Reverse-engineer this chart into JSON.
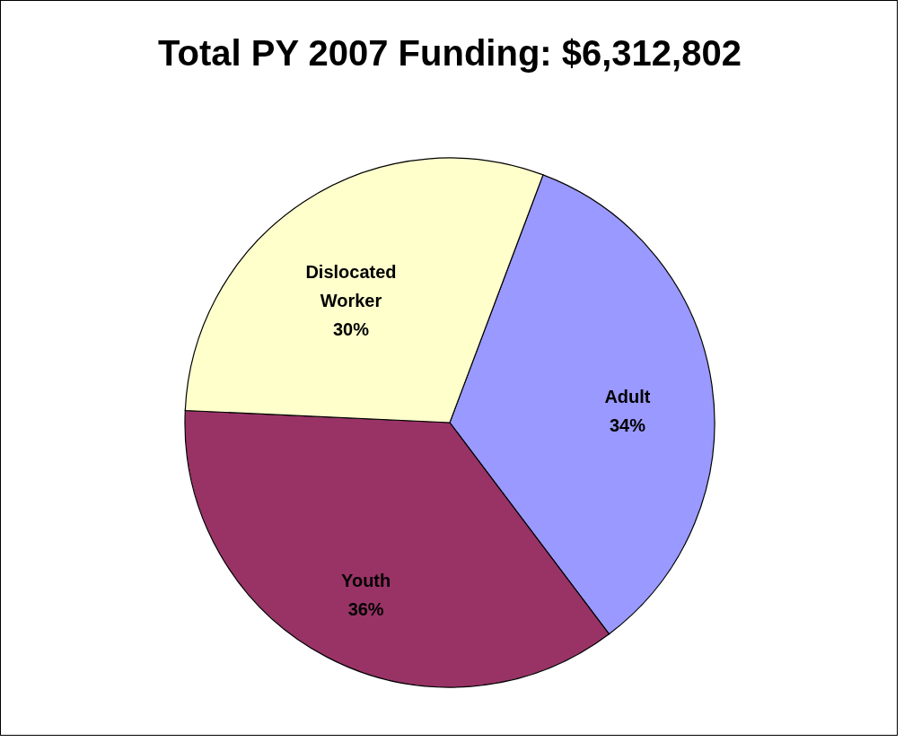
{
  "chart_data": {
    "type": "pie",
    "title": "Total PY 2007 Funding: $6,312,802",
    "categories": [
      "Adult",
      "Youth",
      "Dislocated Worker"
    ],
    "values": [
      34,
      36,
      30
    ],
    "colors": [
      "#9999ff",
      "#993366",
      "#ffffcc"
    ],
    "value_labels": [
      "34%",
      "36%",
      "30%"
    ]
  }
}
